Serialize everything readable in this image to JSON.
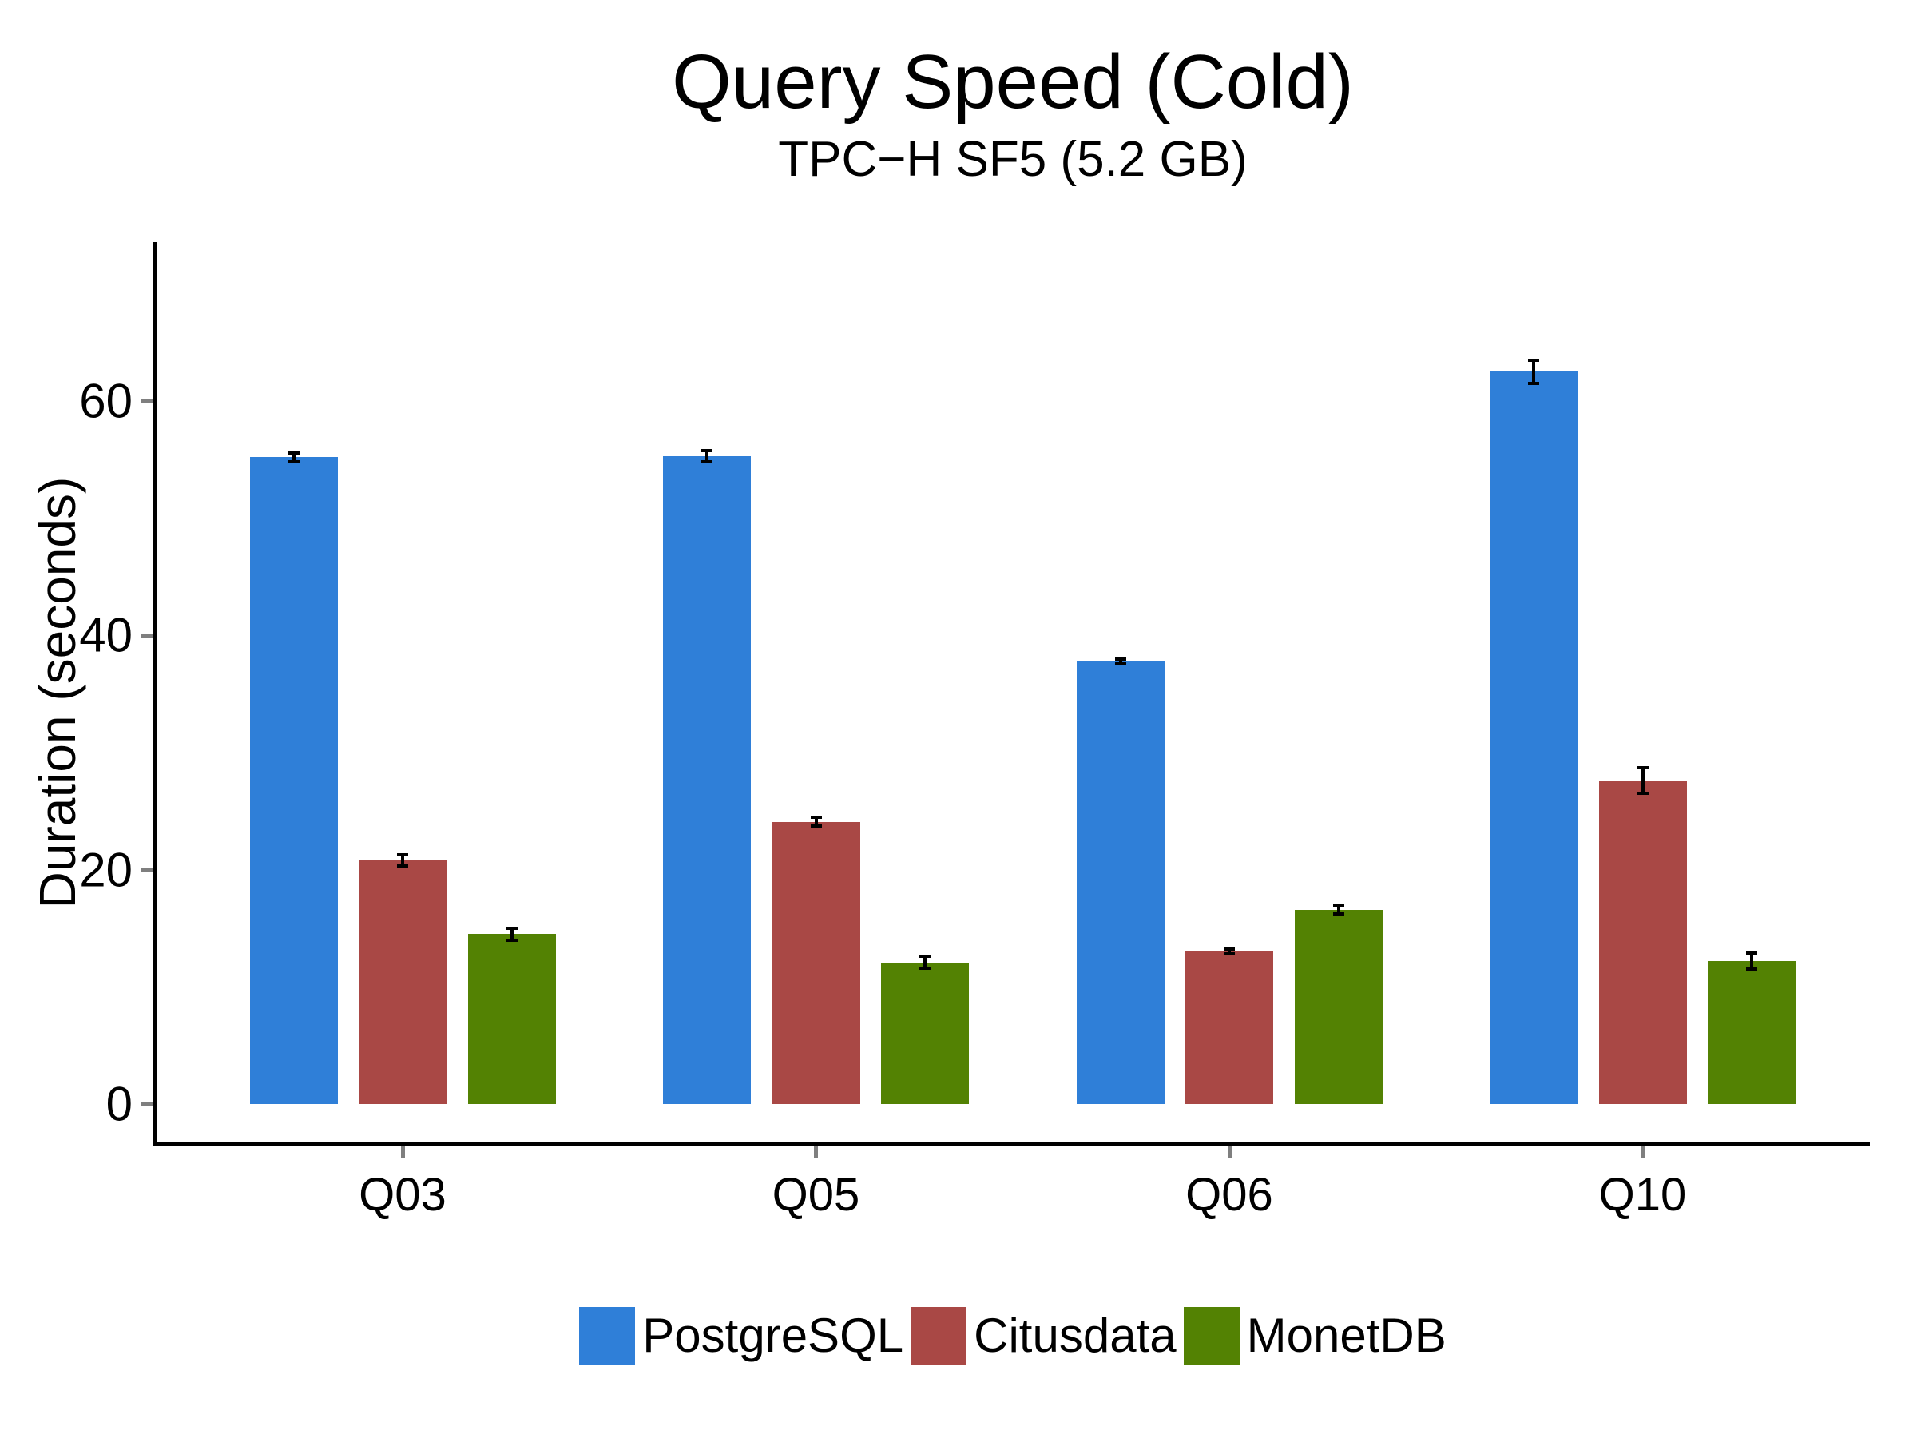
{
  "title": "Query Speed (Cold)",
  "subtitle": "TPC−H SF5 (5.2 GB)",
  "chart_data": {
    "type": "bar",
    "title": "Query Speed (Cold)",
    "subtitle": "TPC−H SF5 (5.2 GB)",
    "categories": [
      "Q03",
      "Q05",
      "Q06",
      "Q10"
    ],
    "series": [
      {
        "name": "PostgreSQL",
        "color": "#2f7fd8",
        "values": [
          55.2,
          55.3,
          37.8,
          62.5
        ],
        "errors": [
          0.4,
          0.5,
          0.2,
          1.0
        ]
      },
      {
        "name": "Citusdata",
        "color": "#a94845",
        "values": [
          20.8,
          24.1,
          13.0,
          27.6
        ],
        "errors": [
          0.5,
          0.4,
          0.2,
          1.1
        ]
      },
      {
        "name": "MonetDB",
        "color": "#538203",
        "values": [
          14.5,
          12.1,
          16.6,
          12.2
        ],
        "errors": [
          0.5,
          0.5,
          0.4,
          0.7
        ]
      }
    ],
    "xlabel": "",
    "ylabel": "Duration (seconds)",
    "yticks": [
      0,
      20,
      40,
      60
    ],
    "ylim": [
      0,
      74
    ],
    "grid": false,
    "error_bars": true,
    "legend_position": "bottom",
    "colors": {
      "axis_line": "#000000",
      "tick_mark": "#7f7f7f",
      "text": "#000000",
      "background": "#ffffff"
    }
  }
}
